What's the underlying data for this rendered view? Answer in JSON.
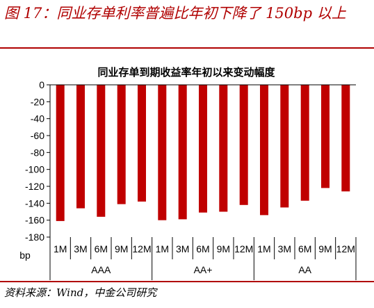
{
  "figure": {
    "caption": "图 17：同业存单利率普遍比年初下降了 150bp 以上",
    "source": "资料来源：Wind，中金公司研究"
  },
  "colors": {
    "accent": "#b00000",
    "bar": "#c00000"
  },
  "chart_data": {
    "type": "bar",
    "title": "同业存单到期收益率年初以来变动幅度",
    "xlabel": "",
    "ylabel": "bp",
    "ylim": [
      -180,
      0
    ],
    "yticks": [
      0,
      -20,
      -40,
      -60,
      -80,
      -100,
      -120,
      -140,
      -160,
      -180
    ],
    "grid": false,
    "legend": "none",
    "categories": [
      "1M",
      "3M",
      "6M",
      "9M",
      "12M",
      "1M",
      "3M",
      "6M",
      "9M",
      "12M",
      "1M",
      "3M",
      "6M",
      "9M",
      "12M"
    ],
    "groups": [
      {
        "label": "AAA",
        "count": 5
      },
      {
        "label": "AA+",
        "count": 5
      },
      {
        "label": "AA",
        "count": 5
      }
    ],
    "values": [
      -161,
      -146,
      -156,
      -141,
      -138,
      -160,
      -159,
      -151,
      -150,
      -142,
      -154,
      -145,
      -137,
      -122,
      -126
    ]
  }
}
